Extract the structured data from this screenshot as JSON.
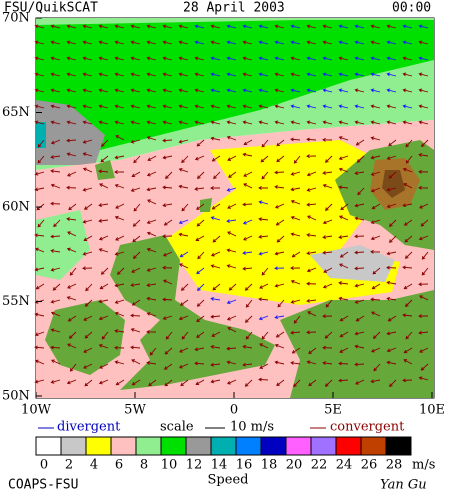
{
  "header": {
    "source": "FSU/QuikSCAT",
    "date": "28 April 2003",
    "time": "00:00"
  },
  "map": {
    "lat_labels": [
      "70N",
      "65N",
      "60N",
      "55N",
      "50N"
    ],
    "lon_labels": [
      "10W",
      "5W",
      "0",
      "5E",
      "10E"
    ]
  },
  "legend": {
    "divergent": "divergent",
    "scale": "scale",
    "scale_value": "10 m/s",
    "convergent": "convergent"
  },
  "colorbar": {
    "labels": [
      "0",
      "2",
      "4",
      "6",
      "8",
      "10",
      "12",
      "14",
      "16",
      "18",
      "20",
      "22",
      "24",
      "26",
      "28"
    ],
    "colors": [
      "#ffffff",
      "#c8c8c8",
      "#ffff00",
      "#ffc0c0",
      "#90ee90",
      "#00e000",
      "#999999",
      "#00b0b0",
      "#0080ff",
      "#0000c0",
      "#ff60ff",
      "#a070ff",
      "#ff0000",
      "#c04000",
      "#000000"
    ],
    "unit": "m/s",
    "title": "Speed"
  },
  "footer": {
    "left": "COAPS-FSU",
    "right": "Yan Gu"
  }
}
